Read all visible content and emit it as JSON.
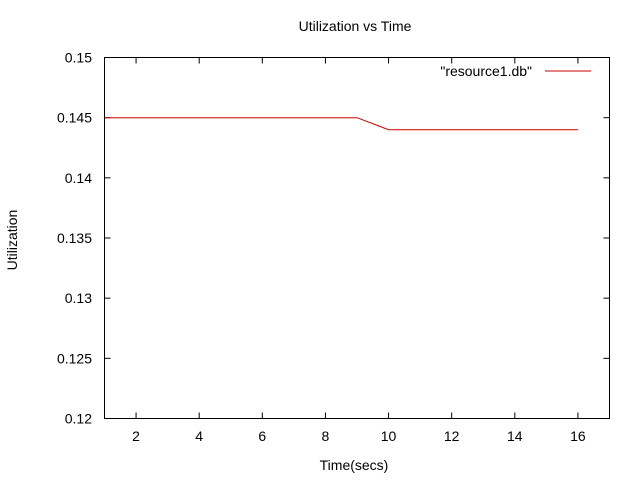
{
  "chart_data": {
    "type": "line",
    "title": "Utilization vs Time",
    "xlabel": "Time(secs)",
    "ylabel": "Utilization",
    "xlim": [
      1,
      17
    ],
    "ylim": [
      0.12,
      0.15
    ],
    "x_ticks": [
      2,
      4,
      6,
      8,
      10,
      12,
      14,
      16
    ],
    "y_ticks": [
      0.12,
      0.125,
      0.13,
      0.135,
      0.14,
      0.145,
      0.15
    ],
    "x_tick_labels": [
      "2",
      "4",
      "6",
      "8",
      "10",
      "12",
      "14",
      "16"
    ],
    "y_tick_labels": [
      "0.12",
      "0.125",
      "0.13",
      "0.135",
      "0.14",
      "0.145",
      "0.15"
    ],
    "grid": false,
    "legend_position": "top-right",
    "series": [
      {
        "name": "\"resource1.db\"",
        "color": "#cc0000",
        "x": [
          1,
          9,
          10,
          16
        ],
        "y": [
          0.145,
          0.145,
          0.144,
          0.144
        ]
      }
    ]
  }
}
